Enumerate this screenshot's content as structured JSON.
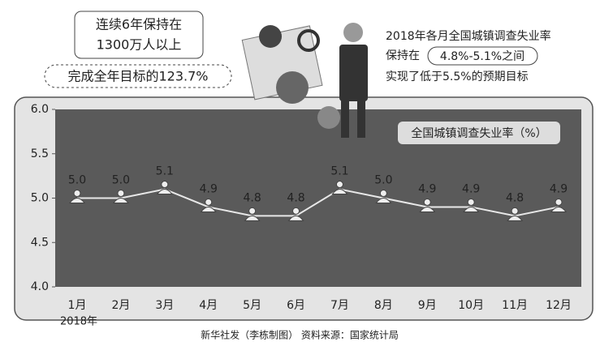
{
  "chart_data": {
    "type": "line",
    "annotations": [
      "连续6年保持在",
      "1300万人以上",
      "完成全年目标的123.7%",
      "2018年各月全国城镇调查失业率",
      "保持在",
      "4.8%-5.1%之间",
      "实现了低于5.5%的预期目标"
    ],
    "categories": [
      "1月",
      "2月",
      "3月",
      "4月",
      "5月",
      "6月",
      "7月",
      "8月",
      "9月",
      "10月",
      "11月",
      "12月"
    ],
    "year_label": "2018年",
    "series": [
      {
        "name": "全国城镇调查失业率（%）",
        "color": "#e8e8e8",
        "values": [
          5.0,
          5.0,
          5.1,
          4.9,
          4.8,
          4.8,
          5.1,
          5.0,
          4.9,
          4.9,
          4.8,
          4.9
        ],
        "value_labels": [
          "5.0",
          "5.0",
          "5.1",
          "4.9",
          "4.8",
          "4.8",
          "5.1",
          "5.0",
          "4.9",
          "4.9",
          "4.8",
          "4.9"
        ]
      }
    ],
    "ylim": [
      4.0,
      6.0
    ],
    "yticks": [
      {
        "value": 4.0,
        "label": "4.0"
      },
      {
        "value": 4.5,
        "label": "4.5"
      },
      {
        "value": 5.0,
        "label": "5.0"
      },
      {
        "value": 5.5,
        "label": "5.5"
      },
      {
        "value": 6.0,
        "label": "6.0"
      }
    ],
    "source": "新华社发（李栋制图） 资料来源：国家统计局"
  }
}
